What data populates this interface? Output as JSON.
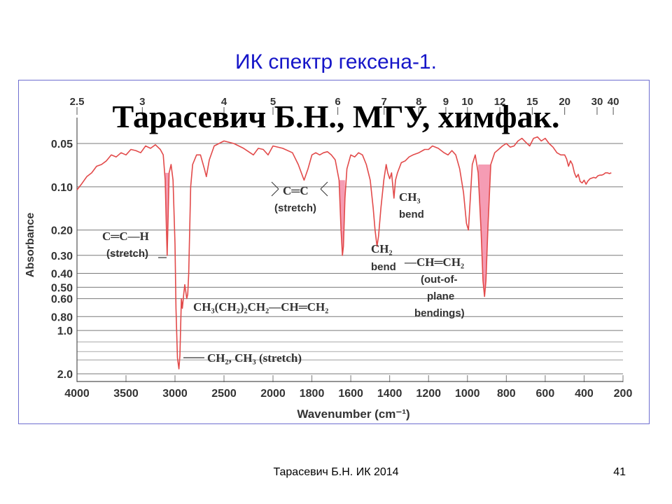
{
  "slide": {
    "title": "ИК спектр гексена-1.",
    "watermark": "Тарасевич Б.Н., МГУ, химфак.",
    "footer": "Тарасевич Б.Н.  ИК 2014",
    "page_number": "41"
  },
  "colors": {
    "title": "#1515c8",
    "spectrum": "#e24a4a",
    "fill": "#f59cb4",
    "grid": "#7a7a7a"
  },
  "chart_data": {
    "type": "line",
    "xlabel": "Wavenumber (cm⁻¹)",
    "ylabel": "Absorbance",
    "x_ticks": [
      "4000",
      "3500",
      "3000",
      "2500",
      "2000",
      "1800",
      "1600",
      "1400",
      "1200",
      "1000",
      "800",
      "600",
      "400",
      "200"
    ],
    "top_ticks": [
      "2.5",
      "3",
      "4",
      "5",
      "6",
      "7",
      "8",
      "9",
      "10",
      "12",
      "15",
      "20",
      "30",
      "40"
    ],
    "y_ticks": [
      "0.05",
      "0.10",
      "0.20",
      "0.30",
      "0.40",
      "0.50",
      "0.60",
      "0.80",
      "1.0",
      "2.0"
    ],
    "xlim": [
      4000,
      200
    ],
    "ylim": [
      0.04,
      2.2
    ],
    "y_scale": "log",
    "series": [
      {
        "points": [
          [
            4000,
            0.105
          ],
          [
            3950,
            0.095
          ],
          [
            3900,
            0.085
          ],
          [
            3850,
            0.08
          ],
          [
            3800,
            0.072
          ],
          [
            3750,
            0.07
          ],
          [
            3700,
            0.066
          ],
          [
            3650,
            0.06
          ],
          [
            3600,
            0.062
          ],
          [
            3550,
            0.058
          ],
          [
            3500,
            0.06
          ],
          [
            3450,
            0.055
          ],
          [
            3400,
            0.056
          ],
          [
            3350,
            0.058
          ],
          [
            3300,
            0.052
          ],
          [
            3250,
            0.054
          ],
          [
            3200,
            0.051
          ],
          [
            3150,
            0.055
          ],
          [
            3120,
            0.06
          ],
          [
            3100,
            0.09
          ],
          [
            3090,
            0.17
          ],
          [
            3080,
            0.3
          ],
          [
            3070,
            0.16
          ],
          [
            3060,
            0.08
          ],
          [
            3040,
            0.07
          ],
          [
            3020,
            0.09
          ],
          [
            3000,
            0.25
          ],
          [
            2990,
            0.7
          ],
          [
            2975,
            1.55
          ],
          [
            2960,
            1.85
          ],
          [
            2950,
            1.5
          ],
          [
            2935,
            0.6
          ],
          [
            2925,
            0.7
          ],
          [
            2910,
            0.55
          ],
          [
            2900,
            0.48
          ],
          [
            2880,
            0.6
          ],
          [
            2870,
            0.56
          ],
          [
            2860,
            0.4
          ],
          [
            2850,
            0.2
          ],
          [
            2840,
            0.1
          ],
          [
            2820,
            0.07
          ],
          [
            2780,
            0.06
          ],
          [
            2740,
            0.06
          ],
          [
            2700,
            0.075
          ],
          [
            2680,
            0.085
          ],
          [
            2650,
            0.065
          ],
          [
            2600,
            0.052
          ],
          [
            2500,
            0.048
          ],
          [
            2400,
            0.05
          ],
          [
            2300,
            0.054
          ],
          [
            2200,
            0.06
          ],
          [
            2150,
            0.054
          ],
          [
            2100,
            0.055
          ],
          [
            2050,
            0.06
          ],
          [
            2000,
            0.052
          ],
          [
            1950,
            0.054
          ],
          [
            1900,
            0.058
          ],
          [
            1870,
            0.07
          ],
          [
            1840,
            0.09
          ],
          [
            1820,
            0.075
          ],
          [
            1800,
            0.06
          ],
          [
            1780,
            0.058
          ],
          [
            1760,
            0.06
          ],
          [
            1740,
            0.058
          ],
          [
            1720,
            0.057
          ],
          [
            1700,
            0.06
          ],
          [
            1680,
            0.065
          ],
          [
            1660,
            0.09
          ],
          [
            1650,
            0.2
          ],
          [
            1643,
            0.3
          ],
          [
            1638,
            0.26
          ],
          [
            1630,
            0.12
          ],
          [
            1620,
            0.075
          ],
          [
            1600,
            0.06
          ],
          [
            1580,
            0.062
          ],
          [
            1560,
            0.058
          ],
          [
            1540,
            0.06
          ],
          [
            1520,
            0.07
          ],
          [
            1500,
            0.09
          ],
          [
            1485,
            0.14
          ],
          [
            1475,
            0.2
          ],
          [
            1465,
            0.26
          ],
          [
            1457,
            0.22
          ],
          [
            1445,
            0.14
          ],
          [
            1430,
            0.09
          ],
          [
            1418,
            0.07
          ],
          [
            1410,
            0.08
          ],
          [
            1400,
            0.088
          ],
          [
            1390,
            0.08
          ],
          [
            1378,
            0.12
          ],
          [
            1370,
            0.09
          ],
          [
            1360,
            0.08
          ],
          [
            1340,
            0.068
          ],
          [
            1320,
            0.066
          ],
          [
            1300,
            0.062
          ],
          [
            1280,
            0.06
          ],
          [
            1250,
            0.058
          ],
          [
            1220,
            0.055
          ],
          [
            1200,
            0.055
          ],
          [
            1180,
            0.052
          ],
          [
            1150,
            0.054
          ],
          [
            1120,
            0.058
          ],
          [
            1100,
            0.06
          ],
          [
            1080,
            0.056
          ],
          [
            1060,
            0.06
          ],
          [
            1040,
            0.075
          ],
          [
            1020,
            0.11
          ],
          [
            1005,
            0.18
          ],
          [
            995,
            0.2
          ],
          [
            985,
            0.12
          ],
          [
            975,
            0.07
          ],
          [
            960,
            0.06
          ],
          [
            945,
            0.08
          ],
          [
            930,
            0.2
          ],
          [
            920,
            0.45
          ],
          [
            912,
            0.58
          ],
          [
            905,
            0.45
          ],
          [
            895,
            0.2
          ],
          [
            880,
            0.07
          ],
          [
            860,
            0.058
          ],
          [
            840,
            0.055
          ],
          [
            820,
            0.052
          ],
          [
            800,
            0.05
          ],
          [
            780,
            0.053
          ],
          [
            760,
            0.052
          ],
          [
            740,
            0.048
          ],
          [
            720,
            0.046
          ],
          [
            700,
            0.049
          ],
          [
            680,
            0.052
          ],
          [
            660,
            0.046
          ],
          [
            640,
            0.045
          ],
          [
            620,
            0.048
          ],
          [
            600,
            0.046
          ],
          [
            580,
            0.05
          ],
          [
            560,
            0.053
          ],
          [
            540,
            0.058
          ],
          [
            520,
            0.06
          ],
          [
            500,
            0.06
          ],
          [
            490,
            0.064
          ],
          [
            480,
            0.072
          ],
          [
            470,
            0.066
          ],
          [
            460,
            0.07
          ],
          [
            450,
            0.08
          ],
          [
            440,
            0.086
          ],
          [
            430,
            0.082
          ],
          [
            420,
            0.092
          ],
          [
            410,
            0.094
          ],
          [
            400,
            0.09
          ],
          [
            390,
            0.096
          ],
          [
            380,
            0.091
          ],
          [
            370,
            0.088
          ],
          [
            350,
            0.086
          ],
          [
            340,
            0.087
          ],
          [
            330,
            0.084
          ],
          [
            320,
            0.083
          ],
          [
            310,
            0.083
          ],
          [
            300,
            0.082
          ],
          [
            290,
            0.08
          ],
          [
            280,
            0.08
          ],
          [
            270,
            0.081
          ],
          [
            260,
            0.08
          ]
        ]
      }
    ],
    "shaded_ranges": [
      [
        3100,
        3060
      ],
      [
        1660,
        1625
      ],
      [
        945,
        880
      ]
    ],
    "annotations": {
      "ch_stretch_formula": "C═C—H",
      "ch_stretch_note": "(stretch)",
      "cc_formula": "C═C",
      "cc_note": "(stretch)",
      "ch3_bend_formula": "CH₃",
      "ch3_bend_note": "bend",
      "ch2_bend_formula": "CH₂",
      "ch2_bend_note": "bend",
      "vinyl_formula": "—CH═CH₂",
      "vinyl_note_1": "(out-of-",
      "vinyl_note_2": "plane",
      "vinyl_note_3": "bendings)",
      "molecule": "CH₃(CH₂)₂CH₂—CH═CH₂",
      "aliphatic_stretch": "CH₂, CH₃ (stretch)"
    }
  }
}
